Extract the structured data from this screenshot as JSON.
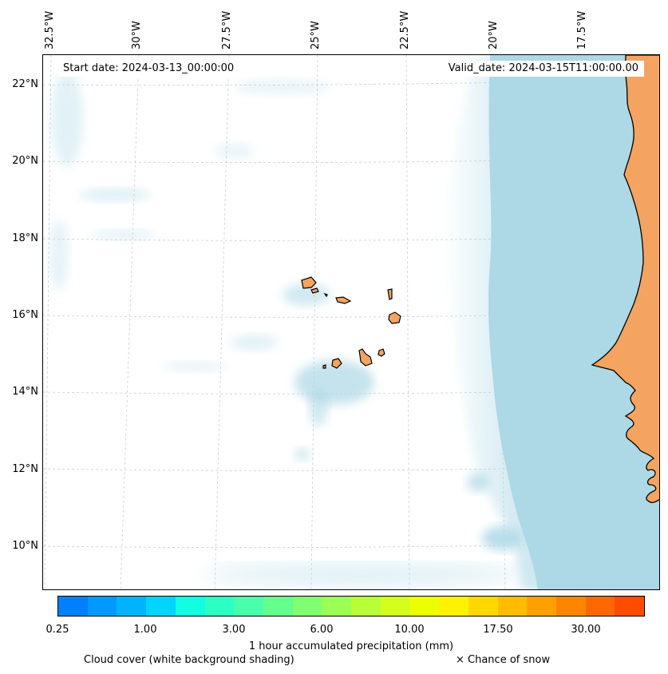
{
  "header": {
    "start_date": "Start date: 2024-03-13_00:00:00",
    "valid_date": "Valid_date: 2024-03-15T11:00:00.00"
  },
  "axes": {
    "longitude_labels": [
      "32.5°W",
      "30°W",
      "27.5°W",
      "25°W",
      "22.5°W",
      "20°W",
      "17.5°W"
    ],
    "latitude_labels": [
      "22°N",
      "20°N",
      "18°N",
      "16°N",
      "14°N",
      "12°N",
      "10°N"
    ]
  },
  "map_colors": {
    "land": "#f4a460",
    "coastline": "#000000",
    "cloud": "#add8e6",
    "gridline": "#cccccc"
  },
  "colorbar": {
    "tick_labels": [
      "0.25",
      "1.00",
      "3.00",
      "6.00",
      "10.00",
      "17.50",
      "30.00"
    ],
    "title": "1 hour accumulated precipitation (mm)",
    "colors": [
      "#0080ff",
      "#0099ff",
      "#00b3ff",
      "#00d5ff",
      "#10ffe0",
      "#2cffc4",
      "#48ffaa",
      "#64ff8c",
      "#80ff70",
      "#9cff54",
      "#b8ff38",
      "#d4ff1c",
      "#ecff00",
      "#fff200",
      "#ffd800",
      "#ffbc00",
      "#ffa000",
      "#ff8400",
      "#ff6800",
      "#ff4c00"
    ]
  },
  "legend": {
    "cloud_cover": "Cloud cover (white background shading)",
    "snow": "× Chance of snow"
  }
}
